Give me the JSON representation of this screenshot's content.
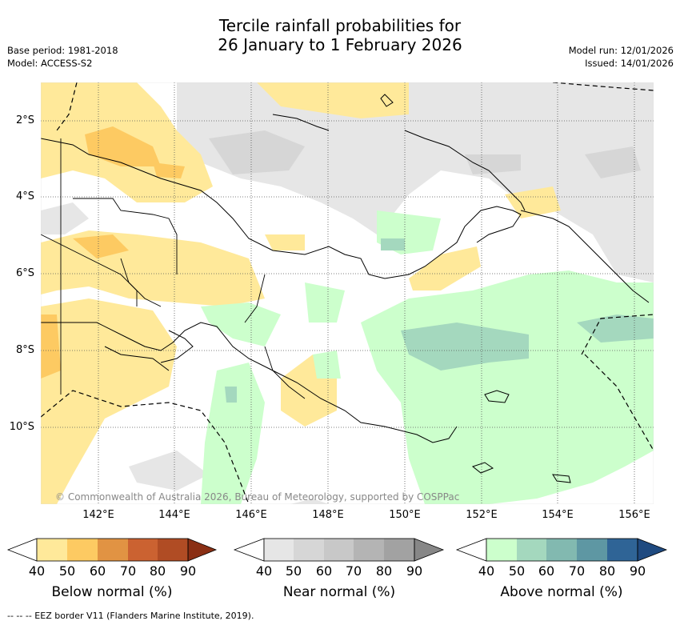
{
  "title_line1": "Tercile rainfall probabilities for",
  "title_line2": "26 January to 1 February 2026",
  "base_period": "Base period: 1981-2018",
  "model": "Model: ACCESS-S2",
  "model_run": "Model run: 12/01/2026",
  "issued": "Issued: 14/01/2026",
  "copyright": "© Commonwealth of Australia 2026, Bureau of Meteorology, supported by COSPPac",
  "footnote": "--  --  -- EEZ border V11 (Flanders Marine Institute, 2019).",
  "lat_labels": [
    "2°S",
    "4°S",
    "6°S",
    "8°S",
    "10°S"
  ],
  "lon_labels": [
    "142°E",
    "144°E",
    "146°E",
    "148°E",
    "150°E",
    "152°E",
    "154°E",
    "156°E"
  ],
  "colorbars": [
    {
      "label": "Below normal (%)",
      "ticks": [
        "40",
        "50",
        "60",
        "70",
        "80",
        "90"
      ],
      "colors": [
        "#ffe99a",
        "#fdca62",
        "#e19343",
        "#cb6231",
        "#b04c24",
        "#8a2f14"
      ]
    },
    {
      "label": "Near normal (%)",
      "ticks": [
        "40",
        "50",
        "60",
        "70",
        "80",
        "90"
      ],
      "colors": [
        "#e6e6e6",
        "#d6d6d6",
        "#c8c8c8",
        "#b4b4b4",
        "#a2a2a2",
        "#878787"
      ]
    },
    {
      "label": "Above normal (%)",
      "ticks": [
        "40",
        "50",
        "60",
        "70",
        "80",
        "90"
      ],
      "colors": [
        "#ccffcc",
        "#a4d8be",
        "#82b9b0",
        "#5e97a3",
        "#2f6496",
        "#1f4a80"
      ]
    }
  ]
}
